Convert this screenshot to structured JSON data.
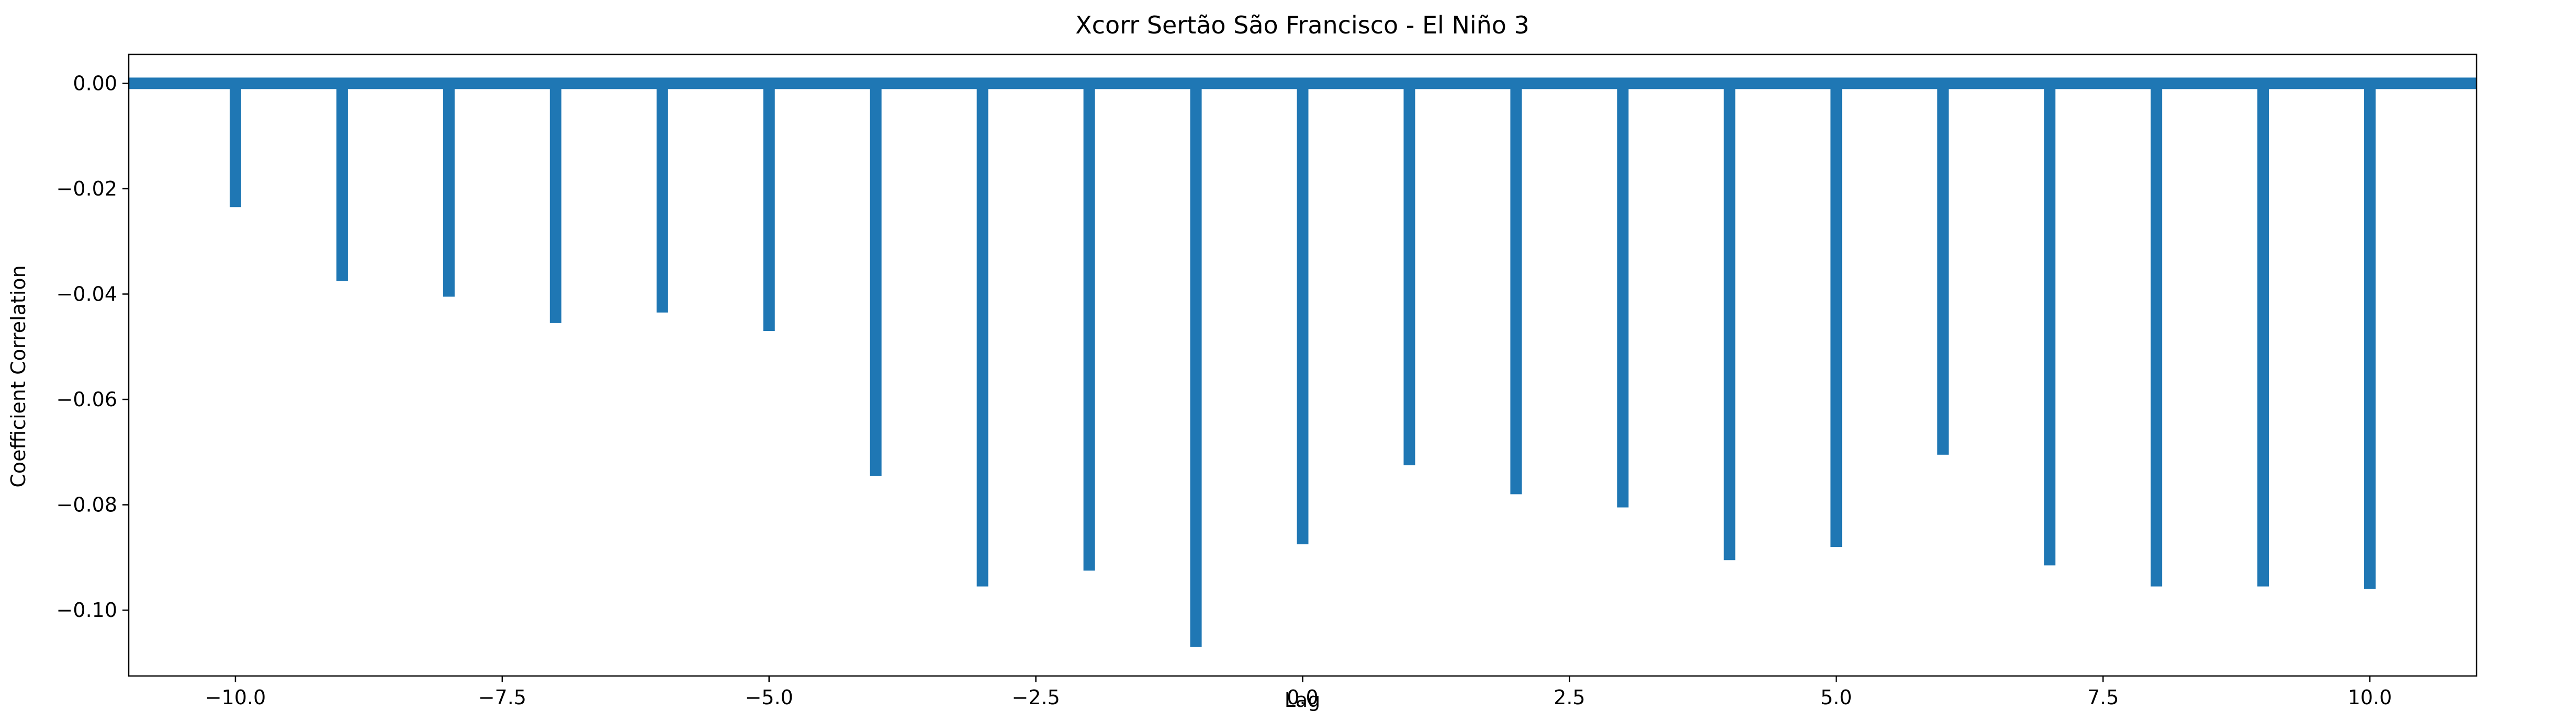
{
  "chart_data": {
    "type": "bar",
    "title": "Xcorr Sertão São Francisco - El Niño 3",
    "xlabel": "Lag",
    "ylabel": "Coefficient Correlation",
    "x": [
      -10,
      -9,
      -8,
      -7,
      -6,
      -5,
      -4,
      -3,
      -2,
      -1,
      0,
      1,
      2,
      3,
      4,
      5,
      6,
      7,
      8,
      9,
      10
    ],
    "values": [
      -0.0235,
      -0.0375,
      -0.0405,
      -0.0455,
      -0.0435,
      -0.047,
      -0.0745,
      -0.0955,
      -0.0925,
      -0.107,
      -0.0875,
      -0.0725,
      -0.078,
      -0.0805,
      -0.0905,
      -0.088,
      -0.0705,
      -0.0915,
      -0.0955,
      -0.0955,
      -0.096
    ],
    "xlim": [
      -11,
      11
    ],
    "ylim": [
      -0.1125,
      0.0055
    ],
    "xticks": [
      -10.0,
      -7.5,
      -5.0,
      -2.5,
      0.0,
      2.5,
      5.0,
      7.5,
      10.0
    ],
    "xtick_labels": [
      "−10.0",
      "−7.5",
      "−5.0",
      "−2.5",
      "0.0",
      "2.5",
      "5.0",
      "7.5",
      "10.0"
    ],
    "yticks": [
      0.0,
      -0.02,
      -0.04,
      -0.06,
      -0.08,
      -0.1
    ],
    "ytick_labels": [
      "0.00",
      "−0.02",
      "−0.04",
      "−0.06",
      "−0.08",
      "−0.10"
    ],
    "baseline": 0,
    "grid": false,
    "legend": "none",
    "colors": {
      "bars": "#1f77b4",
      "baseline": "#1f77b4",
      "axes": "#000000"
    }
  }
}
